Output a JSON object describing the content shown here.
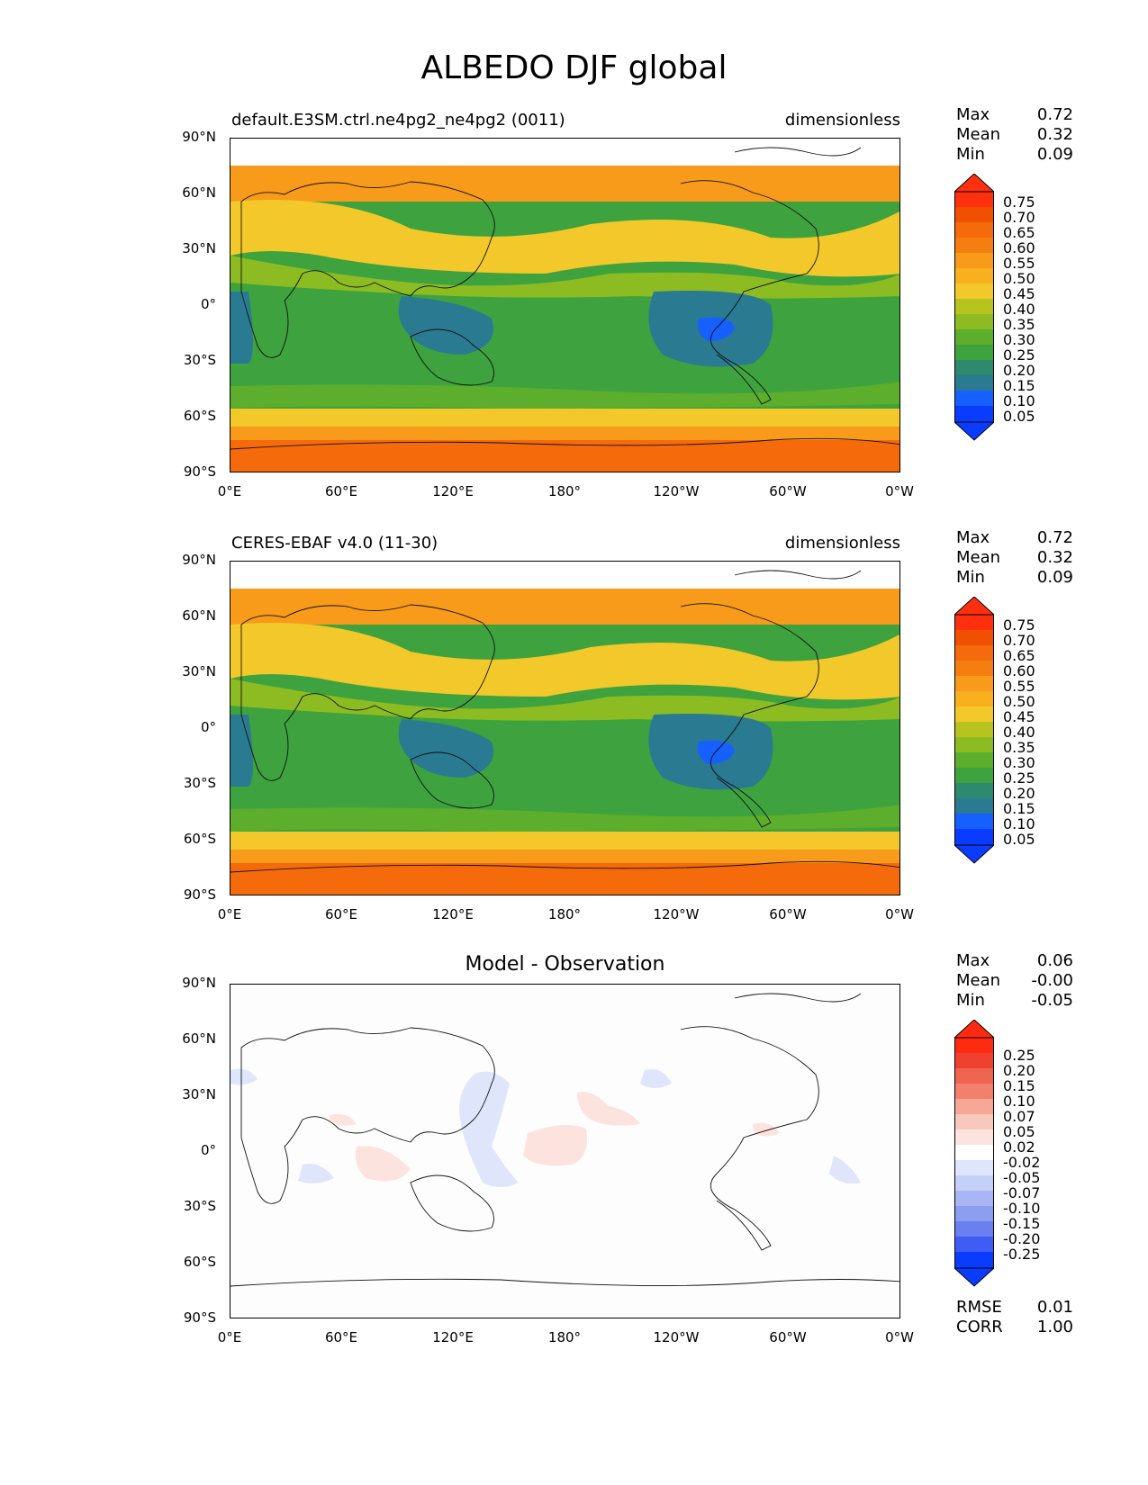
{
  "figure": {
    "title": "ALBEDO DJF global"
  },
  "axes": {
    "yticks": [
      "90°N",
      "60°N",
      "30°N",
      "0°",
      "30°S",
      "60°S",
      "90°S"
    ],
    "xticks": [
      "0°E",
      "60°E",
      "120°E",
      "180°",
      "120°W",
      "60°W",
      "0°W"
    ]
  },
  "colors": {
    "field_scale": [
      "#0a3cff",
      "#1560ff",
      "#2a7a92",
      "#2e8a6e",
      "#3ea23e",
      "#5cae2c",
      "#8cbc22",
      "#b8c41e",
      "#f2c82a",
      "#f8b01e",
      "#f89a1a",
      "#f57e10",
      "#f56a0a",
      "#f05000",
      "#ff3010"
    ],
    "diff_scale": [
      "#0a3cff",
      "#3f5cf5",
      "#6a80f0",
      "#8c9ef2",
      "#a8b6f5",
      "#c4d0f8",
      "#dfe6fb",
      "#ffffff",
      "#fde3de",
      "#f9c8bd",
      "#f6a796",
      "#f3806c",
      "#f06552",
      "#ef4030",
      "#ff2b10"
    ]
  },
  "panels": [
    {
      "name": "model",
      "left_title": "default.E3SM.ctrl.ne4pg2_ne4pg2 (0011)",
      "right_title": "dimensionless",
      "stats": [
        {
          "label": "Max",
          "value": "0.72"
        },
        {
          "label": "Mean",
          "value": "0.32"
        },
        {
          "label": "Min",
          "value": "0.09"
        }
      ],
      "colorbar_labels": [
        "0.75",
        "0.70",
        "0.65",
        "0.60",
        "0.55",
        "0.50",
        "0.45",
        "0.40",
        "0.35",
        "0.30",
        "0.25",
        "0.20",
        "0.15",
        "0.10",
        "0.05"
      ]
    },
    {
      "name": "obs",
      "left_title": "CERES-EBAF v4.0 (11-30)",
      "right_title": "dimensionless",
      "stats": [
        {
          "label": "Max",
          "value": "0.72"
        },
        {
          "label": "Mean",
          "value": "0.32"
        },
        {
          "label": "Min",
          "value": "0.09"
        }
      ],
      "colorbar_labels": [
        "0.75",
        "0.70",
        "0.65",
        "0.60",
        "0.55",
        "0.50",
        "0.45",
        "0.40",
        "0.35",
        "0.30",
        "0.25",
        "0.20",
        "0.15",
        "0.10",
        "0.05"
      ]
    },
    {
      "name": "diff",
      "center_title": "Model - Observation",
      "stats": [
        {
          "label": "Max",
          "value": "0.06"
        },
        {
          "label": "Mean",
          "value": "-0.00"
        },
        {
          "label": "Min",
          "value": "-0.05"
        }
      ],
      "colorbar_labels": [
        "0.25",
        "0.20",
        "0.15",
        "0.10",
        "0.07",
        "0.05",
        "0.02",
        "-0.02",
        "-0.05",
        "-0.07",
        "-0.10",
        "-0.15",
        "-0.20",
        "-0.25"
      ],
      "metrics": [
        {
          "label": "RMSE",
          "value": "0.01"
        },
        {
          "label": "CORR",
          "value": "1.00"
        }
      ]
    }
  ]
}
